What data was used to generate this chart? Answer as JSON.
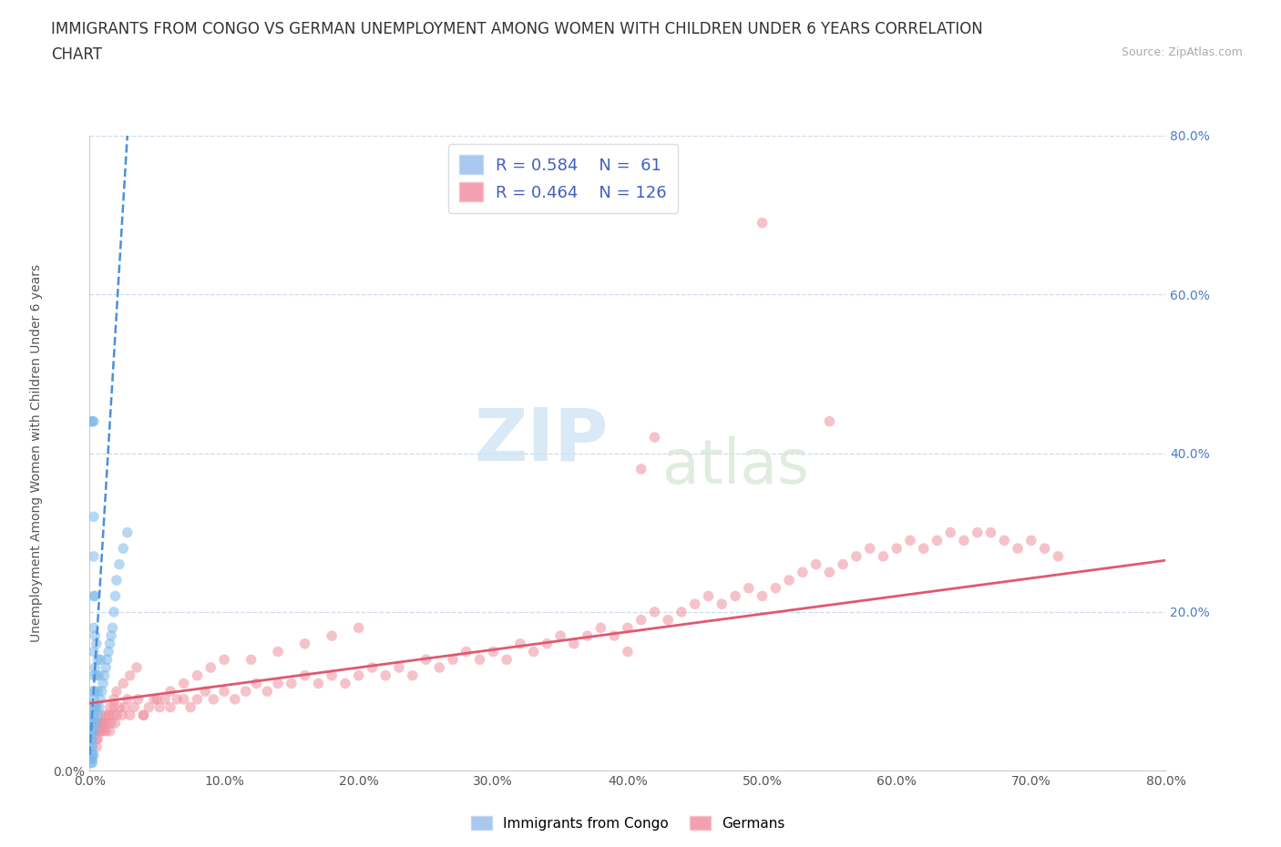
{
  "title_line1": "IMMIGRANTS FROM CONGO VS GERMAN UNEMPLOYMENT AMONG WOMEN WITH CHILDREN UNDER 6 YEARS CORRELATION",
  "title_line2": "CHART",
  "source": "Source: ZipAtlas.com",
  "ylabel": "Unemployment Among Women with Children Under 6 years",
  "xticklabels": [
    "0.0%",
    "10.0%",
    "20.0%",
    "30.0%",
    "40.0%",
    "50.0%",
    "60.0%",
    "70.0%",
    "80.0%"
  ],
  "yticklabels_right": [
    "20.0%",
    "40.0%",
    "60.0%",
    "80.0%"
  ],
  "xlim": [
    0,
    0.8
  ],
  "ylim": [
    0,
    0.8
  ],
  "legend_entries": [
    {
      "label": "Immigrants from Congo",
      "color": "#a8c8f0",
      "R": 0.584,
      "N": 61
    },
    {
      "label": "Germans",
      "color": "#f5a0b0",
      "R": 0.464,
      "N": 126
    }
  ],
  "blue_scatter_x": [
    0.001,
    0.001,
    0.001,
    0.001,
    0.001,
    0.002,
    0.002,
    0.002,
    0.002,
    0.002,
    0.002,
    0.002,
    0.002,
    0.003,
    0.003,
    0.003,
    0.003,
    0.003,
    0.003,
    0.003,
    0.003,
    0.003,
    0.004,
    0.004,
    0.004,
    0.004,
    0.004,
    0.005,
    0.005,
    0.005,
    0.005,
    0.006,
    0.006,
    0.006,
    0.007,
    0.007,
    0.008,
    0.008,
    0.009,
    0.01,
    0.011,
    0.012,
    0.013,
    0.014,
    0.015,
    0.016,
    0.017,
    0.018,
    0.019,
    0.02,
    0.022,
    0.025,
    0.028,
    0.001,
    0.002,
    0.003,
    0.001,
    0.001,
    0.002,
    0.002,
    0.003
  ],
  "blue_scatter_y": [
    0.02,
    0.03,
    0.04,
    0.05,
    0.06,
    0.02,
    0.03,
    0.04,
    0.05,
    0.06,
    0.07,
    0.08,
    0.1,
    0.05,
    0.07,
    0.09,
    0.12,
    0.15,
    0.18,
    0.22,
    0.27,
    0.32,
    0.08,
    0.1,
    0.13,
    0.17,
    0.22,
    0.06,
    0.08,
    0.12,
    0.16,
    0.07,
    0.1,
    0.14,
    0.08,
    0.12,
    0.09,
    0.14,
    0.1,
    0.11,
    0.12,
    0.13,
    0.14,
    0.15,
    0.16,
    0.17,
    0.18,
    0.2,
    0.22,
    0.24,
    0.26,
    0.28,
    0.3,
    0.44,
    0.44,
    0.44,
    0.01,
    0.015,
    0.01,
    0.015,
    0.02
  ],
  "pink_scatter_x": [
    0.004,
    0.005,
    0.006,
    0.007,
    0.008,
    0.009,
    0.01,
    0.011,
    0.012,
    0.013,
    0.014,
    0.015,
    0.016,
    0.017,
    0.018,
    0.019,
    0.02,
    0.022,
    0.024,
    0.026,
    0.028,
    0.03,
    0.033,
    0.036,
    0.04,
    0.044,
    0.048,
    0.052,
    0.056,
    0.06,
    0.065,
    0.07,
    0.075,
    0.08,
    0.086,
    0.092,
    0.1,
    0.108,
    0.116,
    0.124,
    0.132,
    0.14,
    0.15,
    0.16,
    0.17,
    0.18,
    0.19,
    0.2,
    0.21,
    0.22,
    0.23,
    0.24,
    0.25,
    0.26,
    0.27,
    0.28,
    0.29,
    0.3,
    0.31,
    0.32,
    0.33,
    0.34,
    0.35,
    0.36,
    0.37,
    0.38,
    0.39,
    0.4,
    0.41,
    0.42,
    0.43,
    0.44,
    0.45,
    0.46,
    0.47,
    0.48,
    0.49,
    0.5,
    0.51,
    0.52,
    0.53,
    0.54,
    0.55,
    0.56,
    0.57,
    0.58,
    0.59,
    0.6,
    0.61,
    0.62,
    0.63,
    0.64,
    0.65,
    0.66,
    0.67,
    0.68,
    0.69,
    0.7,
    0.71,
    0.72,
    0.005,
    0.008,
    0.01,
    0.012,
    0.015,
    0.018,
    0.02,
    0.025,
    0.03,
    0.035,
    0.04,
    0.05,
    0.06,
    0.07,
    0.08,
    0.09,
    0.1,
    0.12,
    0.14,
    0.16,
    0.18,
    0.2,
    0.5,
    0.55,
    0.41,
    0.42,
    0.005,
    0.4
  ],
  "pink_scatter_y": [
    0.05,
    0.06,
    0.04,
    0.05,
    0.06,
    0.07,
    0.05,
    0.06,
    0.05,
    0.06,
    0.07,
    0.05,
    0.06,
    0.07,
    0.08,
    0.06,
    0.07,
    0.08,
    0.07,
    0.08,
    0.09,
    0.07,
    0.08,
    0.09,
    0.07,
    0.08,
    0.09,
    0.08,
    0.09,
    0.08,
    0.09,
    0.09,
    0.08,
    0.09,
    0.1,
    0.09,
    0.1,
    0.09,
    0.1,
    0.11,
    0.1,
    0.11,
    0.11,
    0.12,
    0.11,
    0.12,
    0.11,
    0.12,
    0.13,
    0.12,
    0.13,
    0.12,
    0.14,
    0.13,
    0.14,
    0.15,
    0.14,
    0.15,
    0.14,
    0.16,
    0.15,
    0.16,
    0.17,
    0.16,
    0.17,
    0.18,
    0.17,
    0.18,
    0.19,
    0.2,
    0.19,
    0.2,
    0.21,
    0.22,
    0.21,
    0.22,
    0.23,
    0.22,
    0.23,
    0.24,
    0.25,
    0.26,
    0.25,
    0.26,
    0.27,
    0.28,
    0.27,
    0.28,
    0.29,
    0.28,
    0.29,
    0.3,
    0.29,
    0.3,
    0.3,
    0.29,
    0.28,
    0.29,
    0.28,
    0.27,
    0.04,
    0.05,
    0.06,
    0.07,
    0.08,
    0.09,
    0.1,
    0.11,
    0.12,
    0.13,
    0.07,
    0.09,
    0.1,
    0.11,
    0.12,
    0.13,
    0.14,
    0.14,
    0.15,
    0.16,
    0.17,
    0.18,
    0.69,
    0.44,
    0.38,
    0.42,
    0.03,
    0.15
  ],
  "blue_trend_x": [
    0.0,
    0.028
  ],
  "blue_trend_y": [
    0.02,
    0.8
  ],
  "pink_trend_x": [
    0.0,
    0.8
  ],
  "pink_trend_y": [
    0.085,
    0.265
  ],
  "scatter_alpha": 0.55,
  "scatter_size": 70,
  "blue_color": "#7ab8e8",
  "pink_color": "#f090a0",
  "blue_trend_color": "#4a90d9",
  "pink_trend_color": "#e05870",
  "grid_color": "#c8d8ec",
  "background_color": "#ffffff",
  "watermark_zip": "ZIP",
  "watermark_atlas": "atlas",
  "title_fontsize": 12,
  "axis_label_fontsize": 10,
  "tick_fontsize": 10,
  "tick_color_right": "#4a7cc7",
  "tick_color_bottom": "#555555"
}
